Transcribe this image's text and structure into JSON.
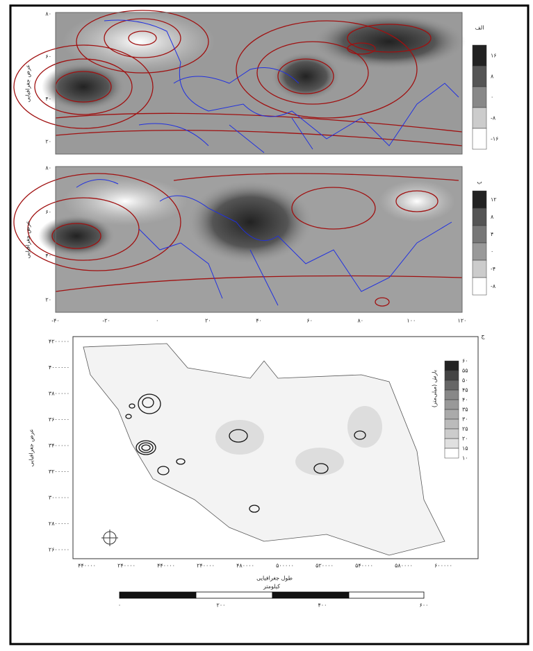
{
  "panels": [
    {
      "label": "الف",
      "y_axis_label": "عرض جغرافیایی",
      "y_ticks": [
        "۸۰",
        "۶۰",
        "۴۰",
        "۲۰"
      ],
      "colorbar_ticks": [
        "۱۶",
        "۸",
        "۰",
        "-۸",
        "-۱۶"
      ]
    },
    {
      "label": "ب",
      "y_axis_label": "عرض جغرافیایی",
      "y_ticks": [
        "۸۰",
        "۶۰",
        "۴۰",
        "۲۰"
      ],
      "colorbar_ticks": [
        "۱۲",
        "۸",
        "۴",
        "۰",
        "-۴",
        "-۸"
      ]
    }
  ],
  "x_ticks": [
    "-۴۰",
    "-۲۰",
    "۰",
    "۲۰",
    "۴۰",
    "۶۰",
    "۸۰",
    "۱۰۰",
    "۱۲۰"
  ],
  "iran_panel": {
    "label": "ج",
    "y_axis_label": "عرض جغرافیایی",
    "x_axis_label": "طول جغرافیایی",
    "y_ticks": [
      "۴۲۰۰۰۰۰",
      "۴۰۰۰۰۰۰",
      "۳۸۰۰۰۰۰",
      "۳۶۰۰۰۰۰",
      "۳۴۰۰۰۰۰",
      "۳۲۰۰۰۰۰",
      "۳۰۰۰۰۰۰",
      "۲۸۰۰۰۰۰",
      "۲۶۰۰۰۰۰"
    ],
    "x_ticks": [
      "۴۴۰۰۰۰",
      "۲۴۰۰۰۰",
      "۴۴۰۰۰۰",
      "۲۴۰۰۰۰",
      "۴۸۰۰۰۰",
      "۵۰۰۰۰۰",
      "۵۲۰۰۰۰",
      "۵۴۰۰۰۰",
      "۵۸۰۰۰۰",
      "۶۰۰۰۰۰"
    ],
    "colorbar_title": "بارش (میلی‌متر)",
    "colorbar_ticks": [
      "۶۰",
      "۵۵",
      "۵۰",
      "۴۵",
      "۴۰",
      "۳۵",
      "۳۰",
      "۲۵",
      "۲۰",
      "۱۵",
      "۱۰"
    ],
    "scale_title": "کیلومتر",
    "scale_ticks": [
      "۰",
      "۲۰۰",
      "۴۰۰",
      "۶۰۰"
    ]
  }
}
